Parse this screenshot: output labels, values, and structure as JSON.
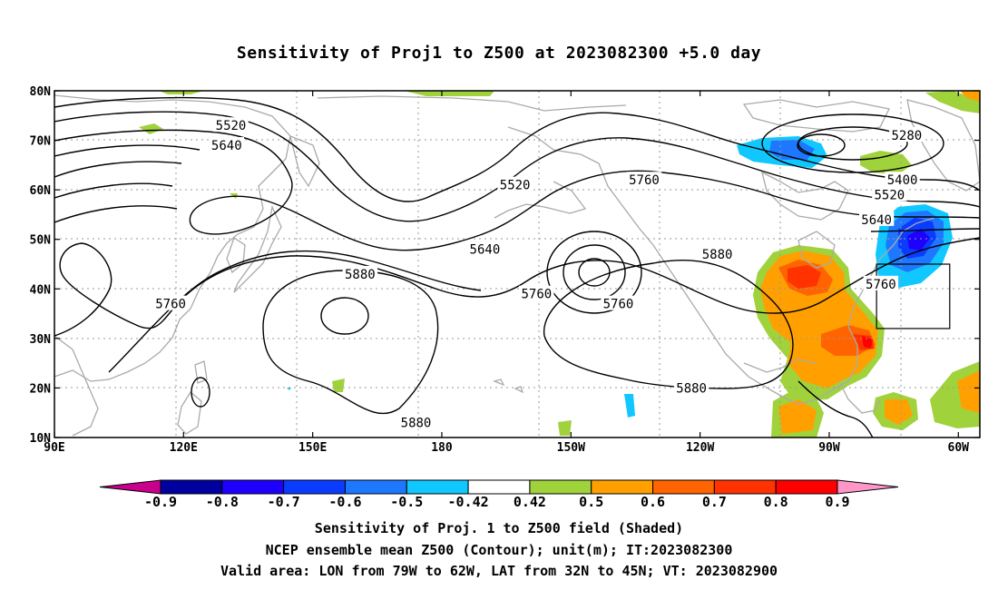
{
  "title": "Sensitivity of Proj1 to Z500 at 2023082300 +5.0 day",
  "footer": {
    "line1": "Sensitivity of Proj. 1 to Z500 field (Shaded)",
    "line2": "NCEP ensemble mean Z500 (Contour); unit(m); IT:2023082300",
    "line3": "Valid area: LON from 79W to 62W, LAT from 32N to 45N; VT: 2023082900"
  },
  "map": {
    "lon_range": [
      90,
      305
    ],
    "lat_range": [
      10,
      80
    ],
    "lon_ticks": [
      {
        "lon": 90,
        "label": "90E"
      },
      {
        "lon": 120,
        "label": "120E"
      },
      {
        "lon": 150,
        "label": "150E"
      },
      {
        "lon": 180,
        "label": "180"
      },
      {
        "lon": 210,
        "label": "150W"
      },
      {
        "lon": 240,
        "label": "120W"
      },
      {
        "lon": 270,
        "label": "90W"
      },
      {
        "lon": 300,
        "label": "60W"
      }
    ],
    "lat_ticks": [
      {
        "lat": 10,
        "label": "10N"
      },
      {
        "lat": 20,
        "label": "20N"
      },
      {
        "lat": 30,
        "label": "30N"
      },
      {
        "lat": 40,
        "label": "40N"
      },
      {
        "lat": 50,
        "label": "50N"
      },
      {
        "lat": 60,
        "label": "60N"
      },
      {
        "lat": 70,
        "label": "70N"
      },
      {
        "lat": 80,
        "label": "80N"
      }
    ],
    "valid_area": {
      "lon_min": 281,
      "lon_max": 298,
      "lat_min": 32,
      "lat_max": 45
    },
    "contour_labels": [
      {
        "value": "5520",
        "lon": 131,
        "lat": 73
      },
      {
        "value": "5640",
        "lon": 130,
        "lat": 69
      },
      {
        "value": "5520",
        "lon": 197,
        "lat": 61
      },
      {
        "value": "5760",
        "lon": 227,
        "lat": 62
      },
      {
        "value": "5280",
        "lon": 288,
        "lat": 71
      },
      {
        "value": "5400",
        "lon": 287,
        "lat": 62
      },
      {
        "value": "5520",
        "lon": 284,
        "lat": 59
      },
      {
        "value": "5640",
        "lon": 281,
        "lat": 54
      },
      {
        "value": "5640",
        "lon": 190,
        "lat": 48
      },
      {
        "value": "5880",
        "lon": 244,
        "lat": 47
      },
      {
        "value": "5880",
        "lon": 161,
        "lat": 43
      },
      {
        "value": "5760",
        "lon": 202,
        "lat": 39
      },
      {
        "value": "5760",
        "lon": 221,
        "lat": 37
      },
      {
        "value": "5760",
        "lon": 282,
        "lat": 41
      },
      {
        "value": "5760",
        "lon": 117,
        "lat": 37
      },
      {
        "value": "5880",
        "lon": 238,
        "lat": 20
      },
      {
        "value": "5880",
        "lon": 174,
        "lat": 13
      }
    ]
  },
  "colorbar": {
    "labels": [
      "-0.9",
      "-0.8",
      "-0.7",
      "-0.6",
      "-0.5",
      "-0.42",
      "0.42",
      "0.5",
      "0.6",
      "0.7",
      "0.8",
      "0.9"
    ],
    "colors": [
      "#c8008c",
      "#0000a0",
      "#1e00ff",
      "#0a3cff",
      "#1e78ff",
      "#10c8ff",
      "#ffffff",
      "#a0d23c",
      "#ffa000",
      "#ff6400",
      "#ff3200",
      "#ff0000",
      "#ff96c8"
    ]
  }
}
